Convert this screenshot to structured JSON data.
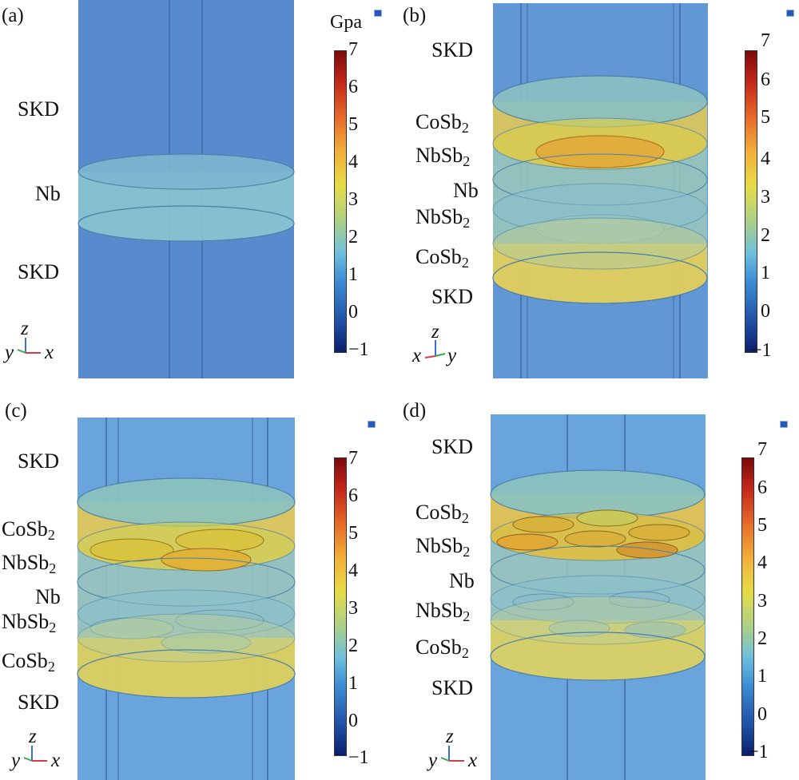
{
  "panels": {
    "a": {
      "label": "(a)",
      "layers": [
        "SKD",
        "Nb",
        "SKD"
      ],
      "axes": [
        "z",
        "y",
        "x"
      ],
      "unit": "Gpa"
    },
    "b": {
      "label": "(b)",
      "layers": [
        "SKD",
        "CoSb",
        "NbSb",
        "Nb",
        "NbSb",
        "CoSb",
        "SKD"
      ],
      "axes": [
        "z",
        "x",
        "y"
      ]
    },
    "c": {
      "label": "(c)",
      "layers": [
        "SKD",
        "CoSb",
        "NbSb",
        "Nb",
        "NbSb",
        "CoSb",
        "SKD"
      ],
      "axes": [
        "z",
        "y",
        "x"
      ]
    },
    "d": {
      "label": "(d)",
      "layers": [
        "SKD",
        "CoSb",
        "NbSb",
        "Nb",
        "NbSb",
        "CoSb",
        "SKD"
      ],
      "axes": [
        "z",
        "y",
        "x"
      ]
    }
  },
  "subscript": "2",
  "colorbar": {
    "ticks": [
      "7",
      "6",
      "5",
      "4",
      "3",
      "2",
      "1",
      "0",
      "−1"
    ],
    "min": -1,
    "max": 7,
    "colors": [
      "#0a1f6b",
      "#3f8fd6",
      "#6fc0dc",
      "#e6dc47",
      "#e66a28",
      "#7a0a0a"
    ]
  }
}
